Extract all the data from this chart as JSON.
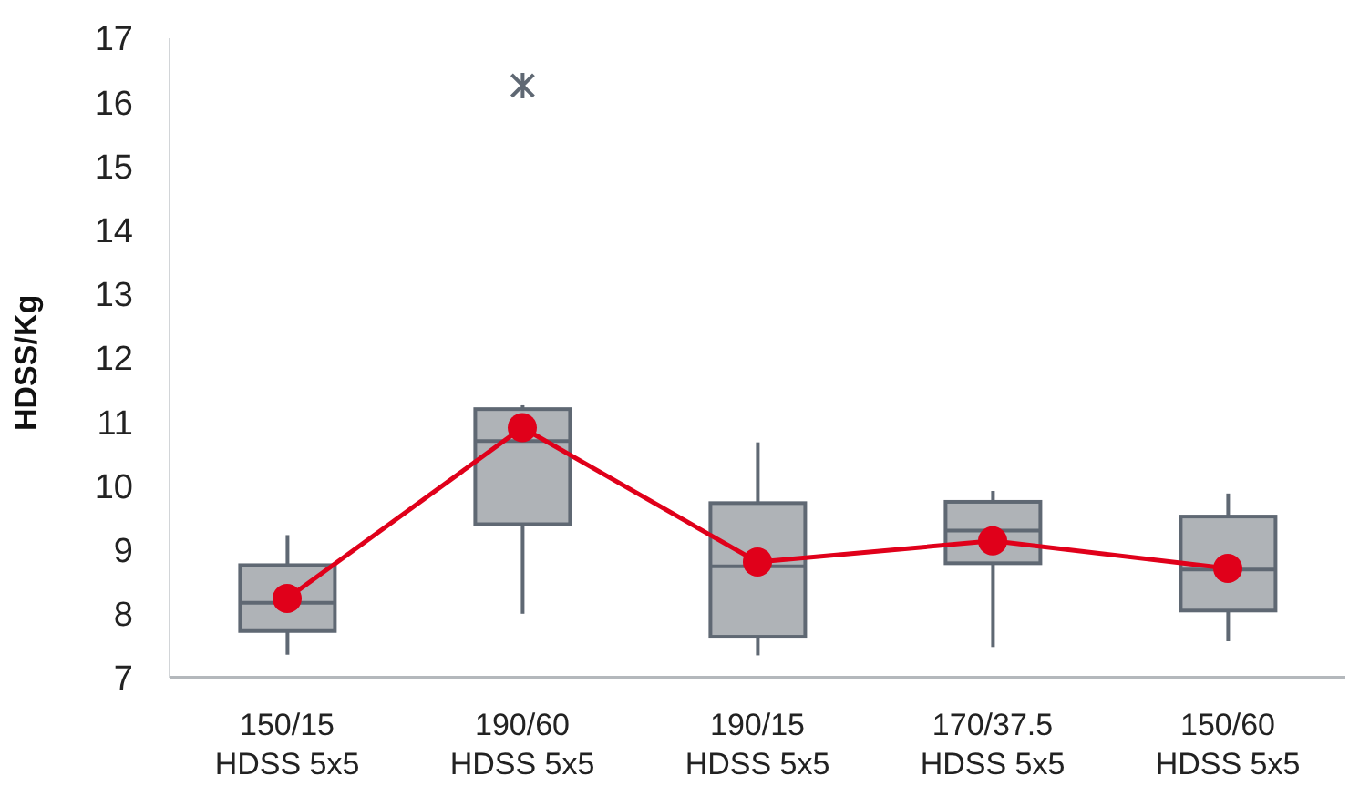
{
  "chart_data": {
    "type": "box",
    "ylabel": "HDSS/Kg",
    "categories": [
      "150/15\nHDSS 5x5",
      "190/60\nHDSS 5x5",
      "190/15\nHDSS 5x5",
      "170/37.5\nHDSS 5x5",
      "150/60\nHDSS 5x5"
    ],
    "color": "#afb3b7",
    "boxes": [
      {
        "low": 7.36,
        "q1": 7.73,
        "median": 8.17,
        "q3": 8.76,
        "high": 9.23
      },
      {
        "low": 8.0,
        "q1": 9.4,
        "median": 10.7,
        "q3": 11.2,
        "high": 11.26,
        "outliers": [
          16.26
        ]
      },
      {
        "low": 7.35,
        "q1": 7.64,
        "median": 8.74,
        "q3": 9.73,
        "high": 10.68
      },
      {
        "low": 7.48,
        "q1": 8.79,
        "median": 9.3,
        "q3": 9.75,
        "high": 9.92
      },
      {
        "low": 7.57,
        "q1": 8.05,
        "median": 8.69,
        "q3": 9.52,
        "high": 9.88
      }
    ],
    "series": [
      {
        "type": "line",
        "color": "#e0001a",
        "marker": "circle",
        "values": [
          8.24,
          10.91,
          8.81,
          9.14,
          8.71
        ]
      }
    ],
    "ylim": [
      7,
      17
    ],
    "yticks": [
      7,
      8,
      9,
      10,
      11,
      12,
      13,
      14,
      15,
      16,
      17
    ],
    "grid": false
  }
}
